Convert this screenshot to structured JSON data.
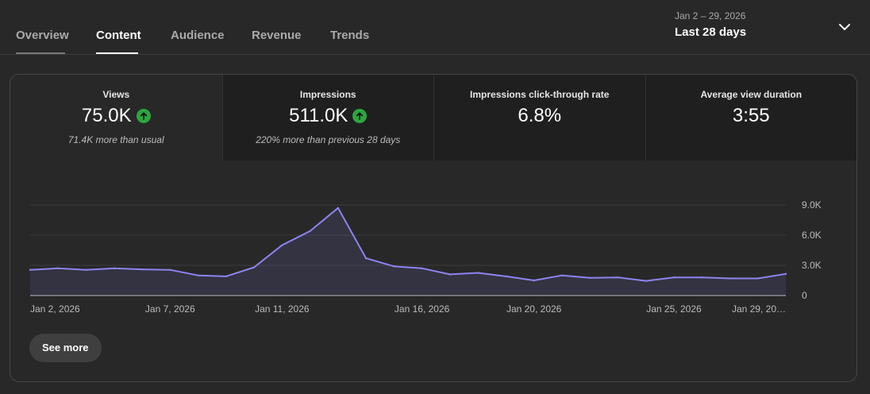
{
  "tabs": [
    {
      "label": "Overview",
      "active": false
    },
    {
      "label": "Content",
      "active": true
    },
    {
      "label": "Audience",
      "active": false
    },
    {
      "label": "Revenue",
      "active": false
    },
    {
      "label": "Trends",
      "active": false
    }
  ],
  "date_range": {
    "dates": "Jan 2 – 29, 2026",
    "label": "Last 28 days",
    "icon": "chevron-down-icon"
  },
  "metrics": [
    {
      "label": "Views",
      "value": "75.0K",
      "trend": "up",
      "note": "71.4K more than usual"
    },
    {
      "label": "Impressions",
      "value": "511.0K",
      "trend": "up",
      "note": "220% more than previous 28 days"
    },
    {
      "label": "Impressions click-through rate",
      "value": "6.8%",
      "trend": "",
      "note": ""
    },
    {
      "label": "Average view duration",
      "value": "3:55",
      "trend": "",
      "note": ""
    }
  ],
  "colors": {
    "accent": "#8c84f0",
    "trend_up": "#2ba640",
    "background": "#282828"
  },
  "see_more_label": "See more",
  "chart_data": {
    "type": "area",
    "title": "",
    "xlabel": "",
    "ylabel": "",
    "x": [
      "Jan 2",
      "Jan 3",
      "Jan 4",
      "Jan 5",
      "Jan 6",
      "Jan 7",
      "Jan 8",
      "Jan 9",
      "Jan 10",
      "Jan 11",
      "Jan 12",
      "Jan 13",
      "Jan 14",
      "Jan 15",
      "Jan 16",
      "Jan 17",
      "Jan 18",
      "Jan 19",
      "Jan 20",
      "Jan 21",
      "Jan 22",
      "Jan 23",
      "Jan 24",
      "Jan 25",
      "Jan 26",
      "Jan 27",
      "Jan 28",
      "Jan 29"
    ],
    "values": [
      2550,
      2700,
      2550,
      2700,
      2600,
      2550,
      2000,
      1900,
      2800,
      5000,
      6400,
      8700,
      3700,
      2900,
      2700,
      2100,
      2250,
      1900,
      1500,
      2000,
      1750,
      1800,
      1450,
      1800,
      1800,
      1700,
      1700,
      2150
    ],
    "x_tick_labels": [
      "Jan 2, 2026",
      "Jan 7, 2026",
      "Jan 11, 2026",
      "Jan 16, 2026",
      "Jan 20, 2026",
      "Jan 25, 2026",
      "Jan 29, 20…"
    ],
    "x_tick_indices": [
      0,
      5,
      9,
      14,
      18,
      23,
      27
    ],
    "y_ticks": [
      0,
      3000,
      6000,
      9000
    ],
    "y_tick_labels": [
      "0",
      "3.0K",
      "6.0K",
      "9.0K"
    ],
    "ylim": [
      0,
      9000
    ],
    "y_axis_position": "right",
    "grid": true
  }
}
